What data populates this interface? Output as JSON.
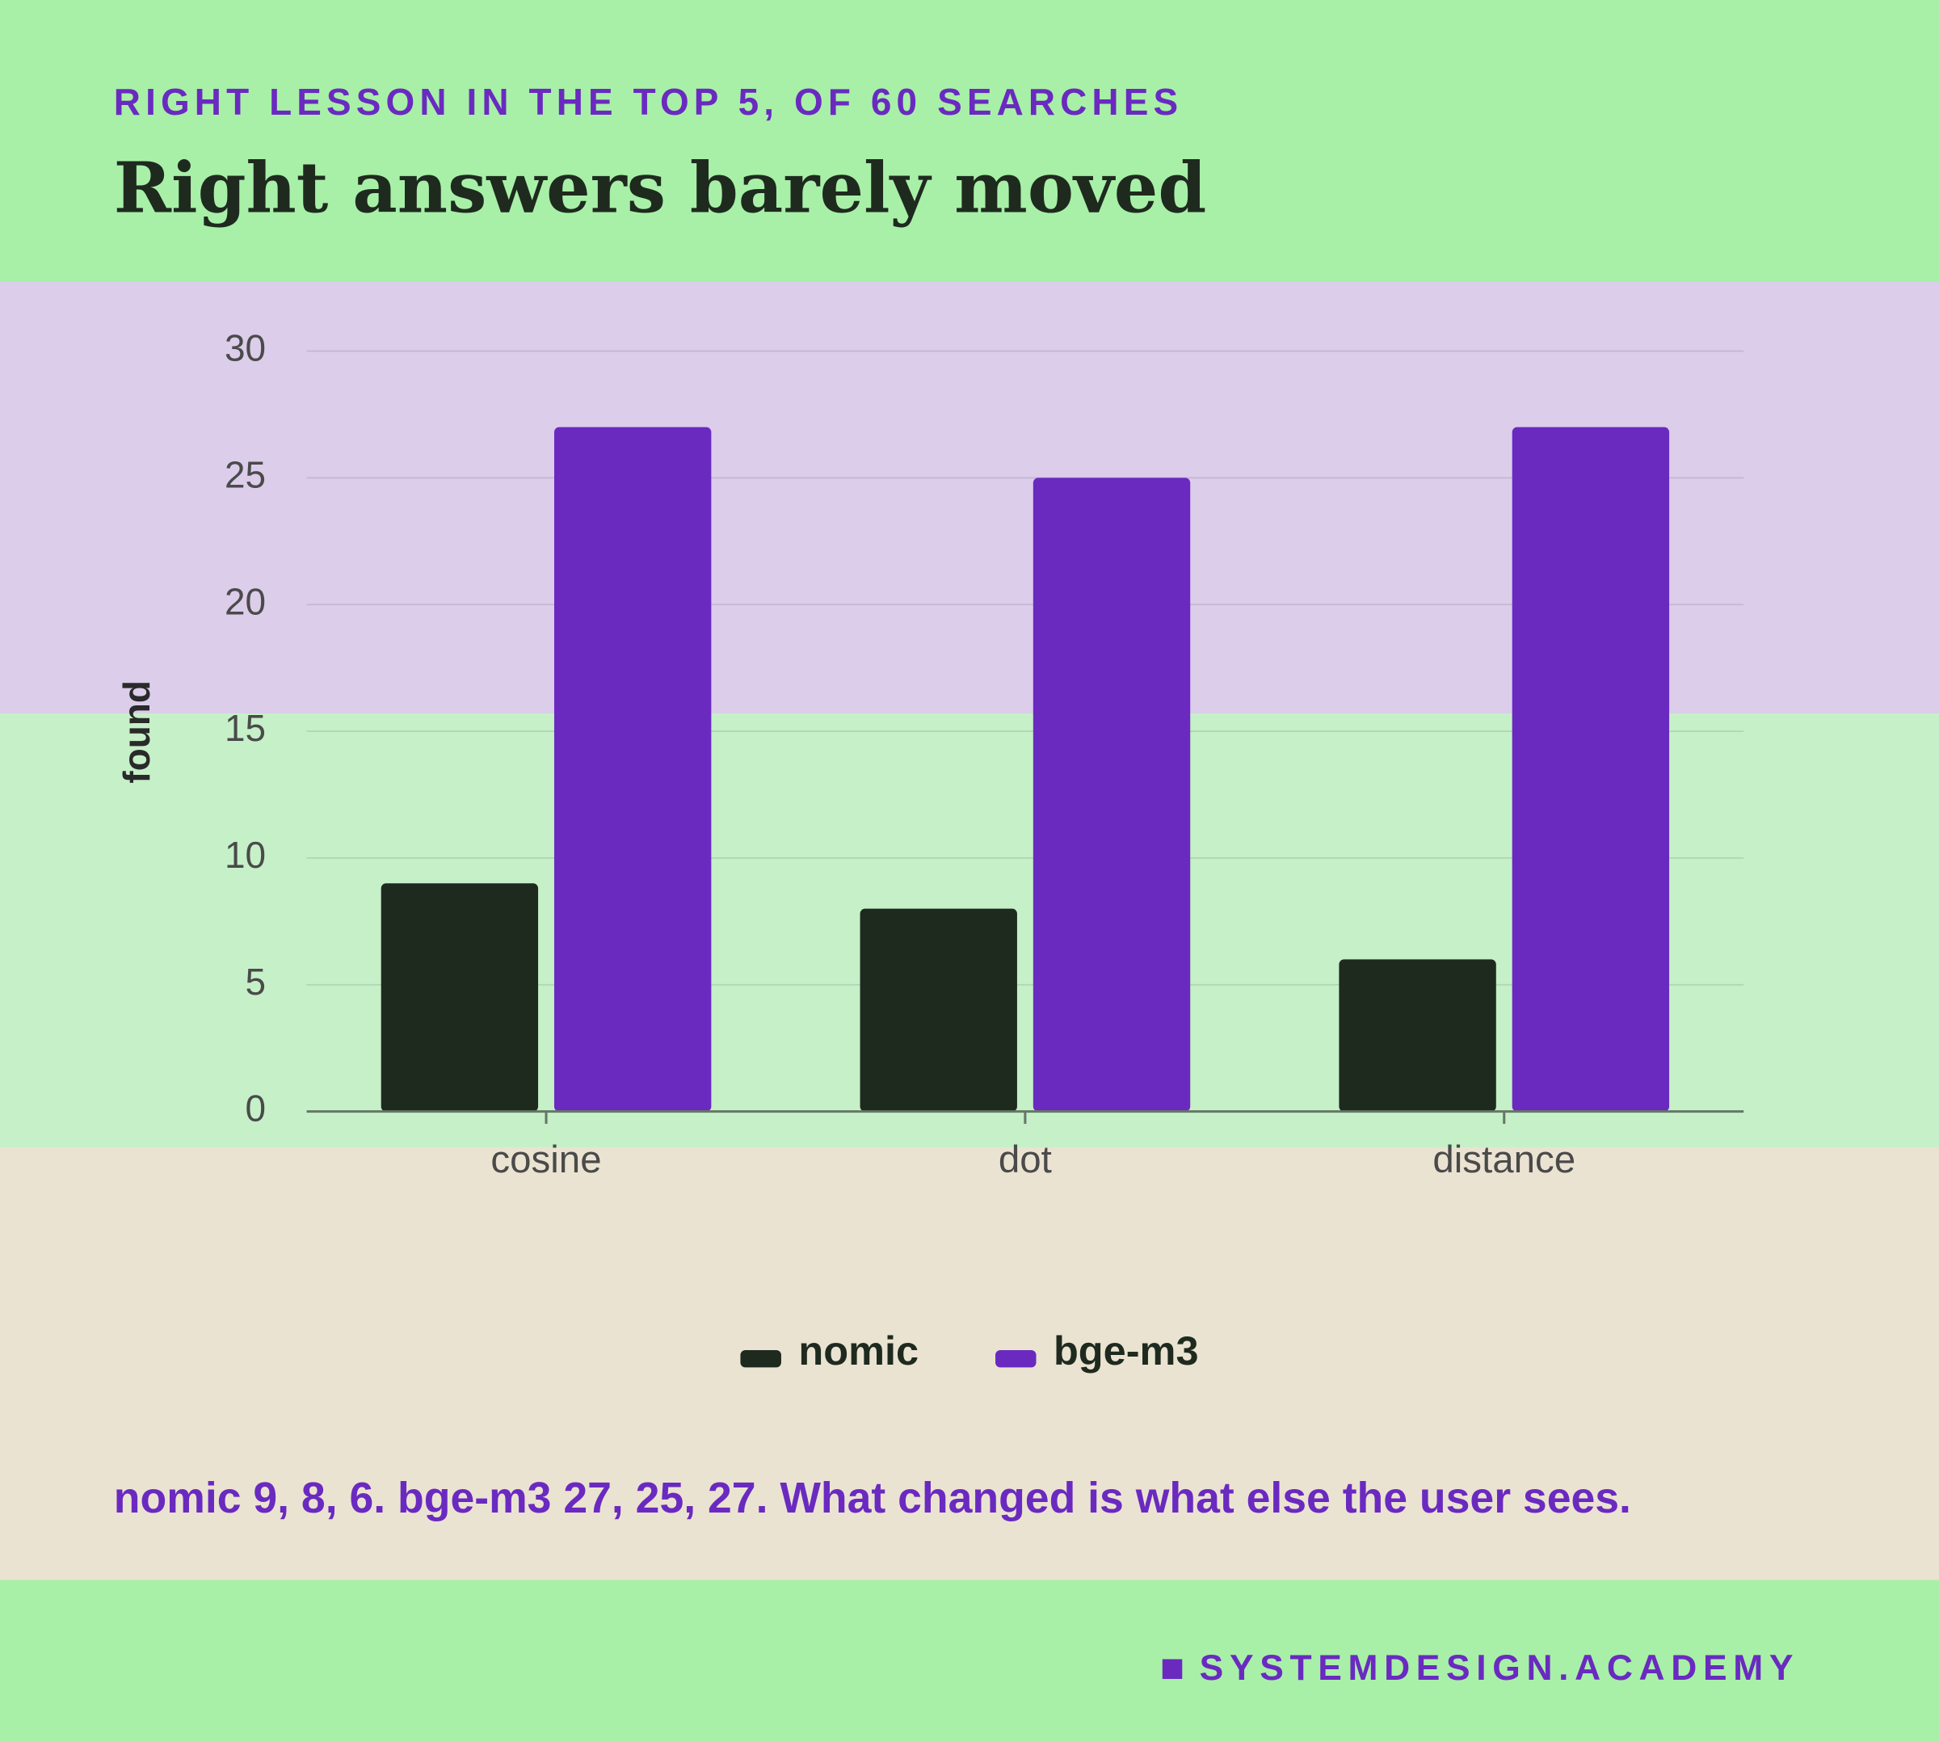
{
  "chart_data": {
    "type": "bar",
    "subtitle": "RIGHT LESSON IN THE TOP 5, OF 60 SEARCHES",
    "title": "Right answers barely moved",
    "y_label": "found",
    "categories": [
      "cosine",
      "dot",
      "distance"
    ],
    "series": [
      {
        "name": "nomic",
        "color": "#1f2a1f",
        "values": [
          9,
          8,
          6
        ]
      },
      {
        "name": "bge-m3",
        "color": "#6a2ac0",
        "values": [
          27,
          25,
          27
        ]
      }
    ],
    "ylim": [
      0,
      30
    ],
    "yticks": [
      0,
      5,
      10,
      15,
      20,
      25,
      30
    ],
    "grid": true,
    "legend": "bottom",
    "annotation": "nomic 9, 8, 6. bge-m3 27, 25, 27. What changed is what else the user sees.",
    "footer": "SYSTEMDESIGN.ACADEMY"
  }
}
